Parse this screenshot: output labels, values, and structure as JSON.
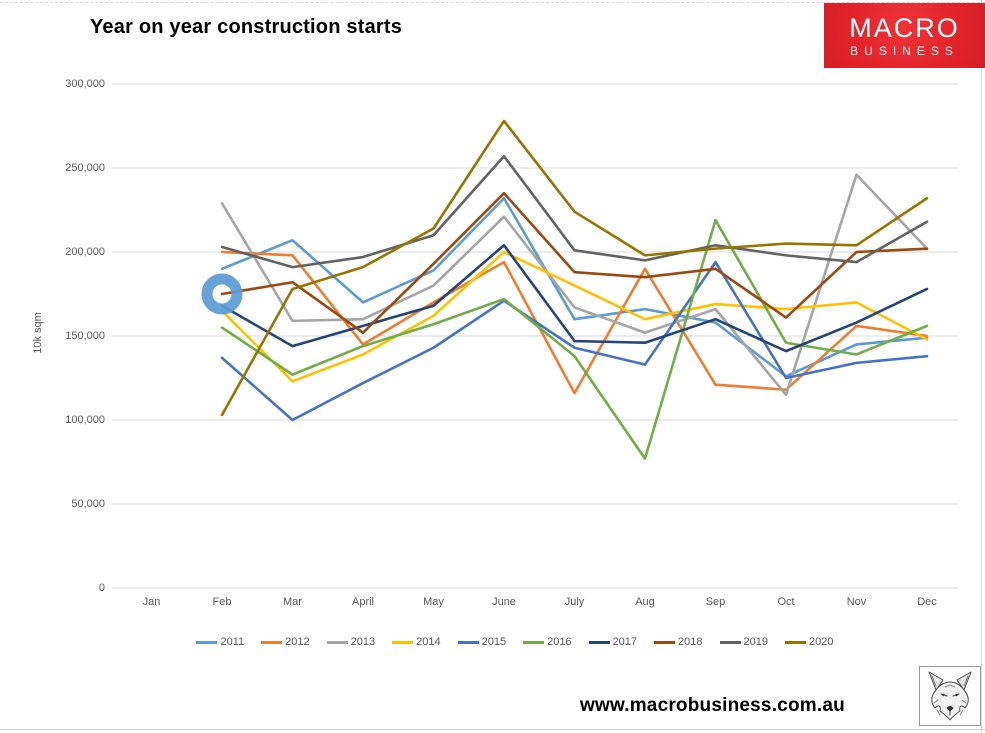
{
  "page": {
    "title": "Year on year construction starts",
    "url": "www.macrobusiness.com.au"
  },
  "logo": {
    "line1": "MACRO",
    "line2": "BUSINESS",
    "bg_color": "#E02128",
    "text_color": "#FFFFFF"
  },
  "colors": {
    "grid": "#D9D9D9",
    "axis_text": "#595959",
    "annotation": "#5B9BD5"
  },
  "chart_data": {
    "type": "line",
    "title": "Year on year construction starts",
    "xlabel": "",
    "ylabel": "10k sqm",
    "ylim": [
      0,
      300000
    ],
    "y_tick_step": 50000,
    "y_ticks": [
      "0",
      "50,000",
      "100,000",
      "150,000",
      "200,000",
      "250,000",
      "300,000"
    ],
    "x": [
      "Jan",
      "Feb",
      "Mar",
      "April",
      "May",
      "June",
      "July",
      "Aug",
      "Sep",
      "Oct",
      "Nov",
      "Dec"
    ],
    "grid": "horizontal-only",
    "legend_position": "bottom",
    "note": "all series have no data for Jan",
    "series": [
      {
        "name": "2011",
        "color": "#5B9BD5",
        "values": [
          null,
          190000,
          207000,
          170000,
          189000,
          232000,
          160000,
          166000,
          158000,
          126000,
          145000,
          149000
        ]
      },
      {
        "name": "2012",
        "color": "#ED7D31",
        "values": [
          null,
          200000,
          198000,
          145000,
          170000,
          194000,
          116000,
          190000,
          121000,
          118000,
          156000,
          150000
        ]
      },
      {
        "name": "2013",
        "color": "#A5A5A5",
        "values": [
          null,
          229000,
          159000,
          160000,
          180000,
          221000,
          167000,
          152000,
          166000,
          115000,
          246000,
          202000
        ]
      },
      {
        "name": "2014",
        "color": "#FFC000",
        "values": [
          null,
          165000,
          123000,
          139000,
          162000,
          200000,
          180000,
          160000,
          169000,
          166000,
          170000,
          148000
        ]
      },
      {
        "name": "2015",
        "color": "#4472C4",
        "values": [
          null,
          137000,
          100000,
          122000,
          143000,
          171000,
          143000,
          133000,
          194000,
          125000,
          134000,
          138000
        ]
      },
      {
        "name": "2016",
        "color": "#70AD47",
        "values": [
          null,
          155000,
          127000,
          144000,
          157000,
          172000,
          138000,
          77000,
          219000,
          146000,
          139000,
          156000
        ]
      },
      {
        "name": "2017",
        "color": "#264478",
        "values": [
          null,
          168000,
          144000,
          156000,
          168000,
          204000,
          147000,
          146000,
          160000,
          141000,
          158000,
          178000
        ]
      },
      {
        "name": "2018",
        "color": "#9E480E",
        "values": [
          null,
          175000,
          182000,
          152000,
          193000,
          235000,
          188000,
          185000,
          190000,
          161000,
          200000,
          202000
        ]
      },
      {
        "name": "2019",
        "color": "#636363",
        "values": [
          null,
          203000,
          191000,
          197000,
          210000,
          257000,
          201000,
          195000,
          204000,
          198000,
          194000,
          218000
        ]
      },
      {
        "name": "2020",
        "color": "#997300",
        "values": [
          null,
          103000,
          178000,
          191000,
          214000,
          278000,
          224000,
          198000,
          202000,
          205000,
          204000,
          232000
        ]
      }
    ],
    "annotation": {
      "shape": "circle",
      "month": "Feb",
      "month_index": 1,
      "series": "2018",
      "value": 175000,
      "color": "#5B9BD5"
    }
  }
}
